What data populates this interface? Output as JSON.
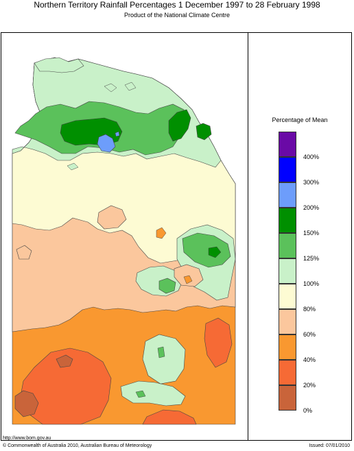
{
  "title": "Northern Territory Rainfall Percentages 1 December 1997 to 28 February 1998",
  "subtitle": "Product of the National Climate Centre",
  "legend": {
    "title": "Percentage of Mean",
    "bins": [
      {
        "color": "#6a0aa6"
      },
      {
        "color": "#0000ff"
      },
      {
        "color": "#6d9dfb"
      },
      {
        "color": "#008f00"
      },
      {
        "color": "#5bc15b"
      },
      {
        "color": "#c9f1c9"
      },
      {
        "color": "#fdfbd3"
      },
      {
        "color": "#fbc79d"
      },
      {
        "color": "#f99830"
      },
      {
        "color": "#f66a35"
      },
      {
        "color": "#c9643a"
      }
    ],
    "ticks": [
      "400%",
      "300%",
      "200%",
      "150%",
      "125%",
      "100%",
      "80%",
      "60%",
      "40%",
      "20%",
      "0%"
    ]
  },
  "footer": {
    "url": "http://www.bom.gov.au",
    "copyright": "© Commonwealth of Australia 2010, Australian Bureau of Meteorology",
    "issued": "Issued: 07/01/2010"
  }
}
